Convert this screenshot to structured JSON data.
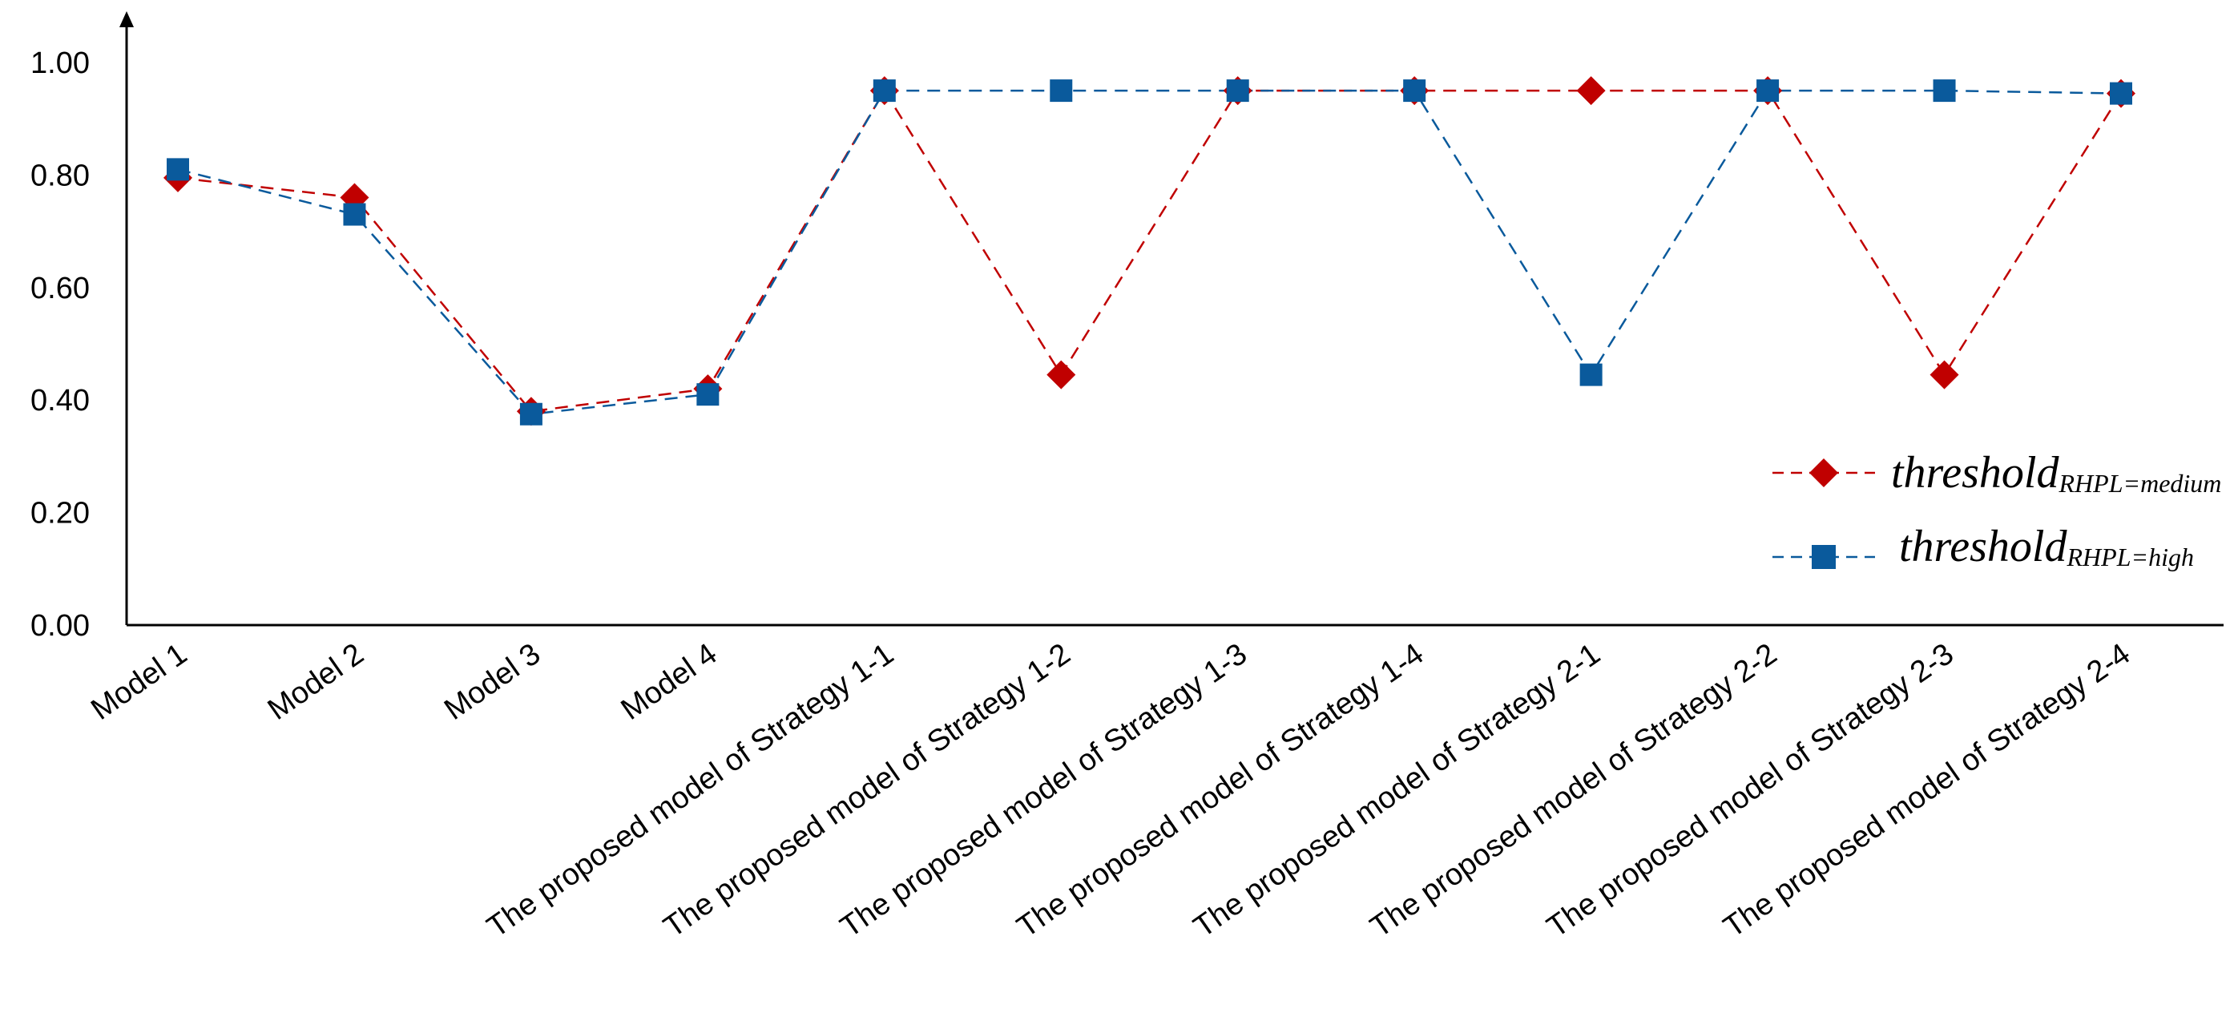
{
  "chart_data": {
    "type": "line",
    "title": "",
    "xlabel": "",
    "ylabel": "",
    "ylim": [
      0,
      1
    ],
    "yticks": [
      "0.00",
      "0.20",
      "0.40",
      "0.60",
      "0.80",
      "1.00"
    ],
    "categories": [
      "Model 1",
      "Model 2",
      "Model 3",
      "Model 4",
      "The proposed model of Strategy 1-1",
      "The proposed model of Strategy 1-2",
      "The proposed model of Strategy 1-3",
      "The proposed model of Strategy 1-4",
      "The proposed model of Strategy 2-1",
      "The proposed model of Strategy 2-2",
      "The proposed model of Strategy 2-3",
      "The proposed model of Strategy 2-4"
    ],
    "series": [
      {
        "name_main": "threshold",
        "name_sub": "RHPL=medium",
        "color": "#c00000",
        "marker": "diamond",
        "line_style": "dashed",
        "values": [
          0.795,
          0.76,
          0.38,
          0.42,
          0.95,
          0.445,
          0.95,
          0.95,
          0.95,
          0.95,
          0.445,
          0.945
        ]
      },
      {
        "name_main": "threshold",
        "name_sub": "RHPL=high",
        "color": "#0a5a9c",
        "marker": "square",
        "line_style": "dashed",
        "values": [
          0.81,
          0.73,
          0.375,
          0.41,
          0.95,
          0.95,
          0.95,
          0.95,
          0.445,
          0.95,
          0.95,
          0.945
        ]
      }
    ],
    "grid": false,
    "legend_position": "right"
  }
}
